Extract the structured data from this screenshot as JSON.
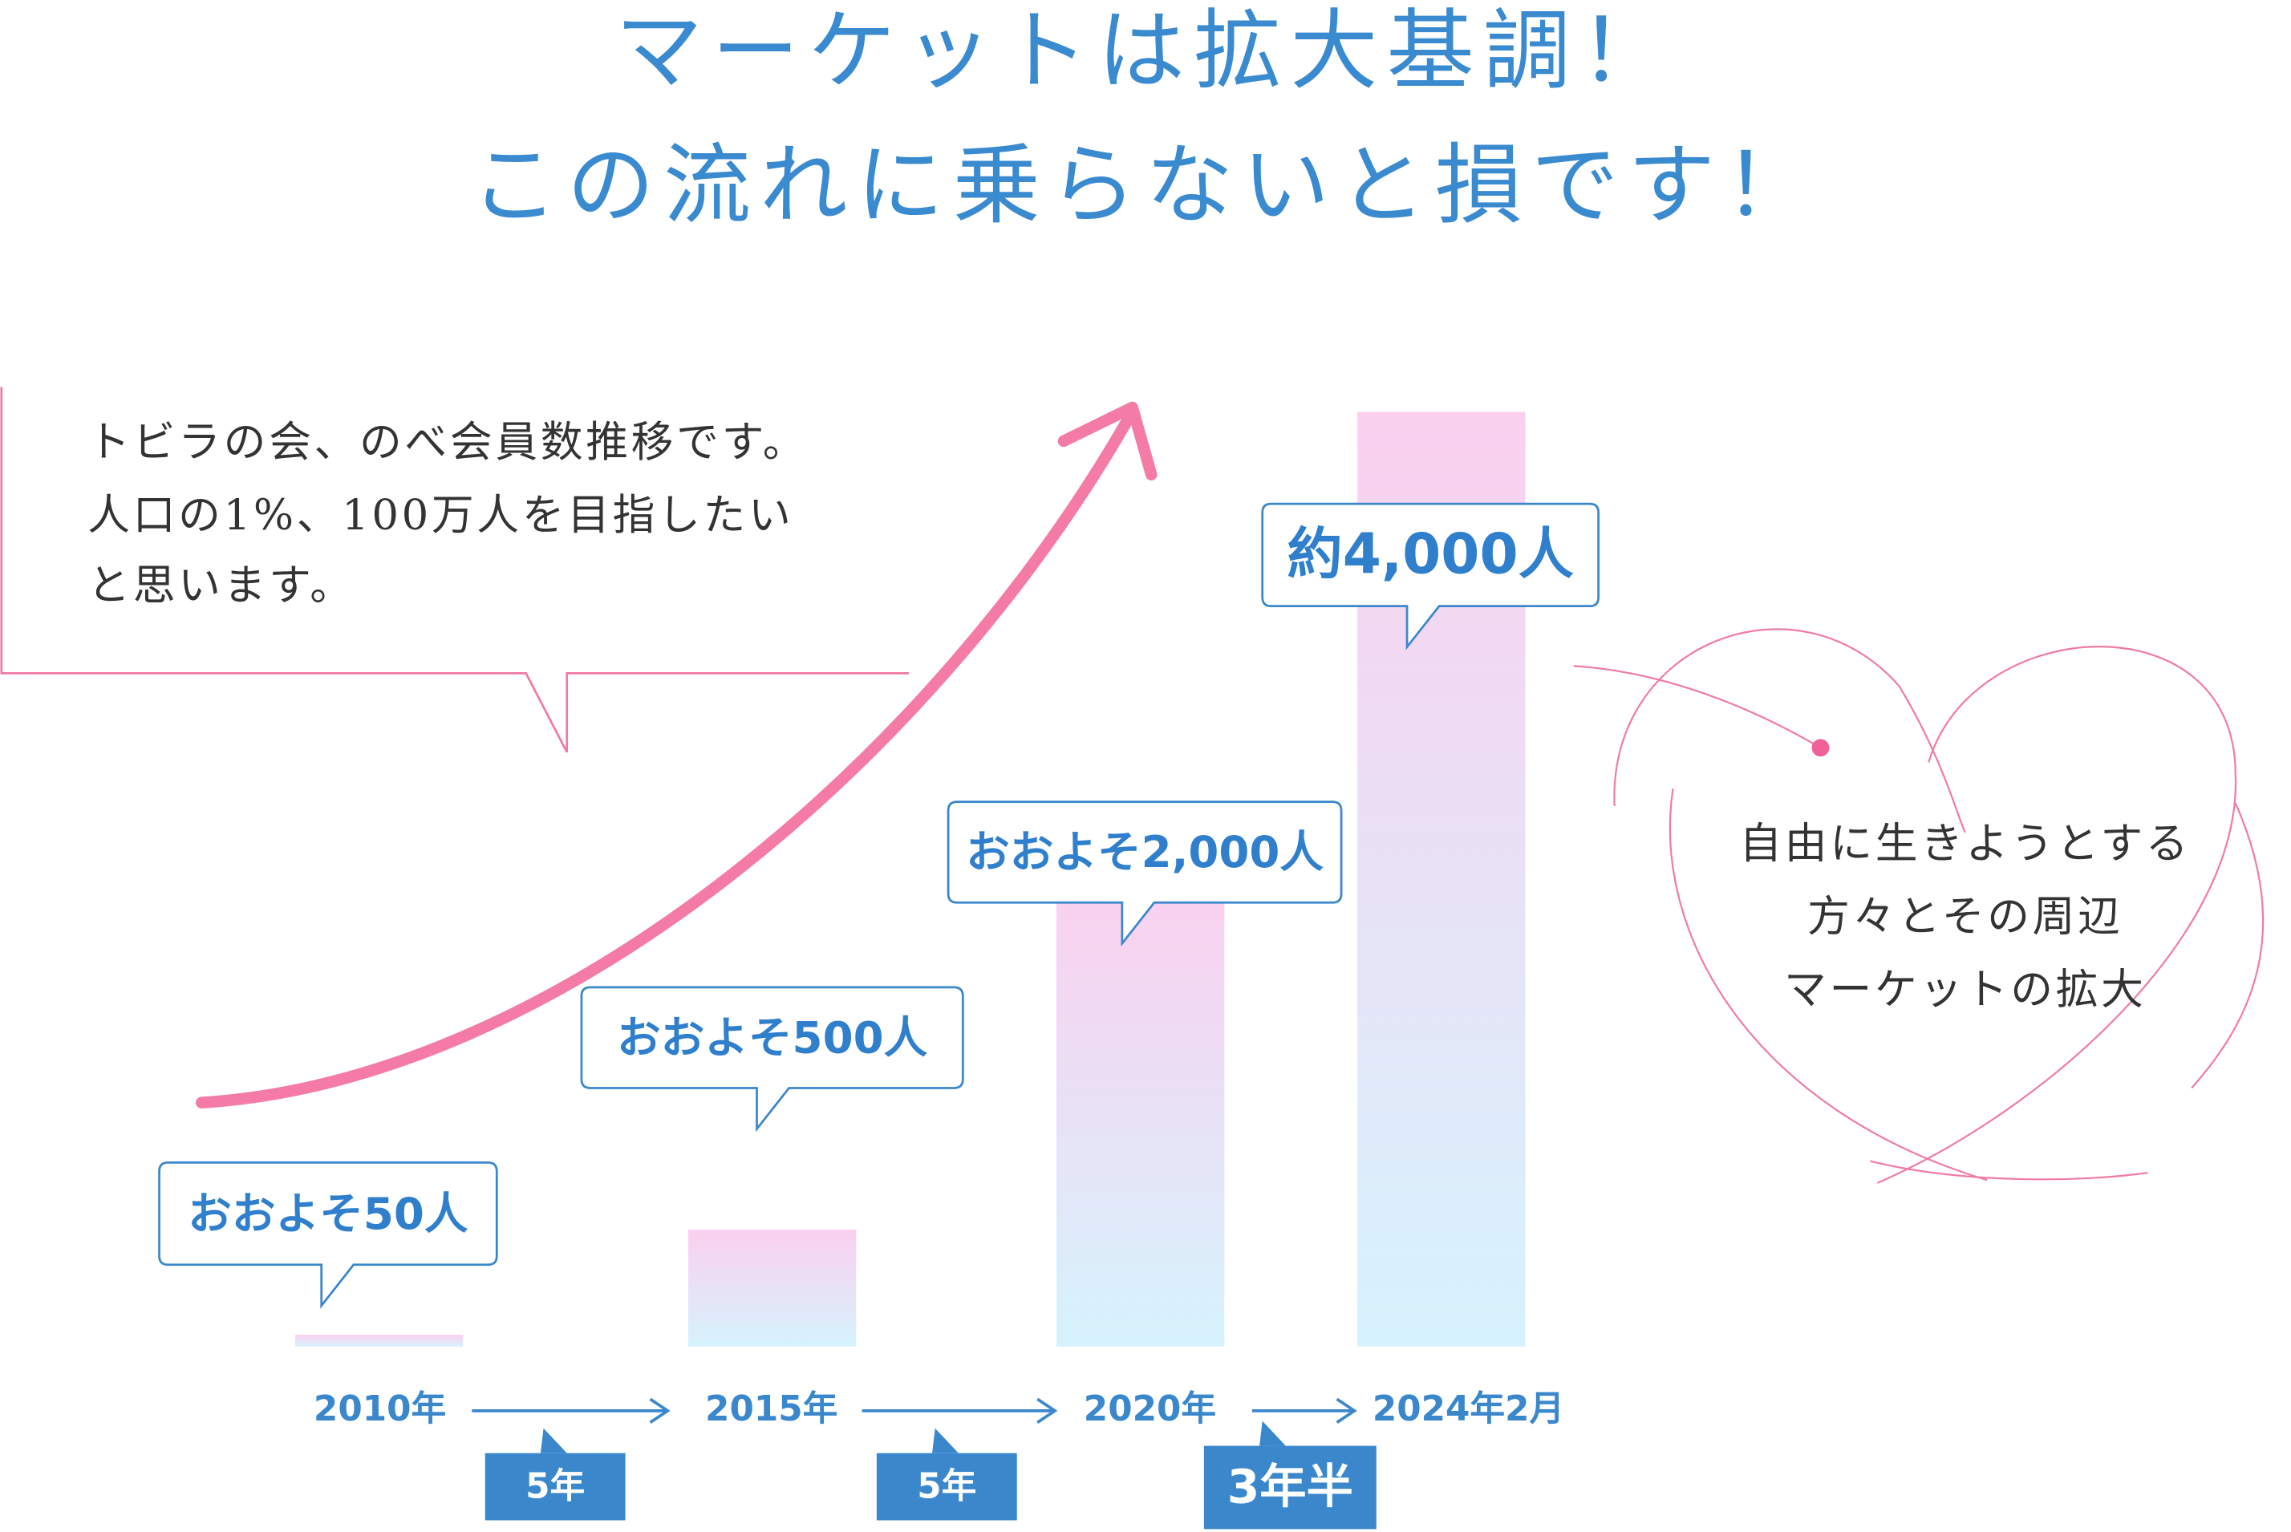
{
  "chart_data": {
    "type": "bar",
    "title": [
      "マーケットは拡大基調！",
      "この流れに乗らないと損です！"
    ],
    "categories": [
      "2010年",
      "2015年",
      "2020年",
      "2024年2月"
    ],
    "values": [
      50,
      500,
      2000,
      4000
    ],
    "value_labels": [
      "おおよそ50人",
      "おおよそ500人",
      "おおよそ2,000人",
      "約4,000人"
    ],
    "intervals": [
      "5年",
      "5年",
      "3年半"
    ],
    "annotations": {
      "callout": [
        "トビラの会、のべ会員数推移です。",
        "人口の1%、100万人を目指したい",
        "と思います。"
      ],
      "heart": [
        "自由に生きようとする",
        "方々とその周辺",
        "マーケットの拡大"
      ]
    },
    "color": [
      "#fbd0ef",
      "#d6f3fd"
    ]
  }
}
